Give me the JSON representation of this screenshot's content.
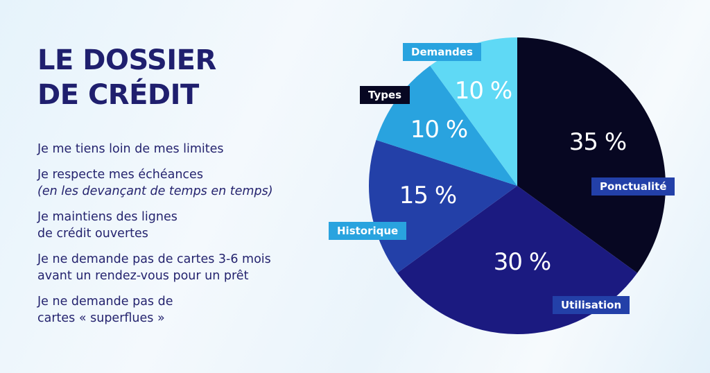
{
  "header": {
    "title_line1": "LE DOSSIER",
    "title_line2": "DE CRÉDIT"
  },
  "tips": [
    {
      "line1": "Je me tiens loin de mes limites"
    },
    {
      "line1": "Je respecte mes échéances",
      "line2_italic": "(en les devançant de temps en temps)"
    },
    {
      "line1": "Je maintiens des lignes",
      "line2": "de crédit ouvertes"
    },
    {
      "line1": "Je ne demande pas de cartes 3-6 mois",
      "line2": "avant un rendez-vous pour un prêt"
    },
    {
      "line1": "Je ne demande pas de",
      "line2": "cartes « superflues »"
    }
  ],
  "chart_data": {
    "type": "pie",
    "title": "Le dossier de crédit",
    "categories": [
      "Ponctualité",
      "Utilisation",
      "Historique",
      "Types",
      "Demandes"
    ],
    "values": [
      35,
      30,
      15,
      10,
      10
    ],
    "value_labels": [
      "35 %",
      "30 %",
      "15 %",
      "10 %",
      "10 %"
    ],
    "colors": [
      "#070722",
      "#1b1a80",
      "#2340a8",
      "#29a3df",
      "#5fd9f5"
    ],
    "label_colors": [
      "#2340a8",
      "#2340a8",
      "#29a3df",
      "#070722",
      "#29a3df"
    ],
    "start_angle": "12 o'clock",
    "direction": "clockwise",
    "legend": "inline labels"
  }
}
